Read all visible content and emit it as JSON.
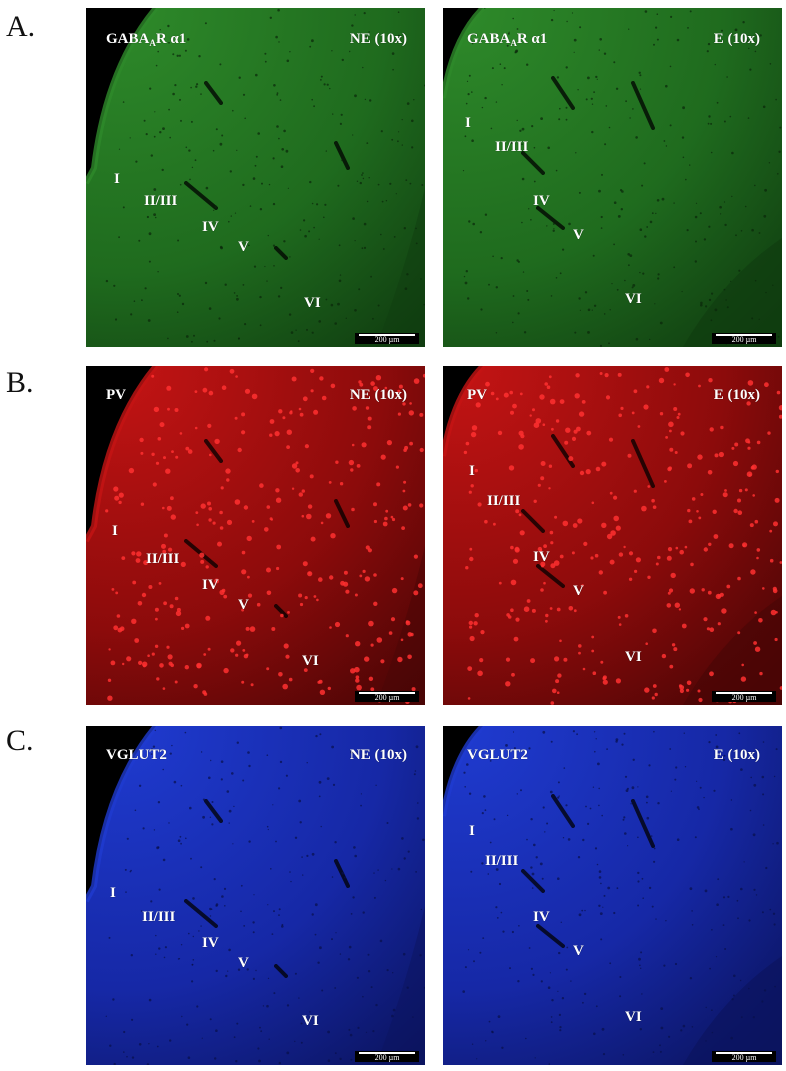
{
  "rows": [
    {
      "label": "A.",
      "marker": "GABA",
      "marker_sub": "A",
      "marker_suffix": "R α1",
      "colors": {
        "bright": "#2e8a2a",
        "mid": "#1f6b1e",
        "dark": "#103d10",
        "spot": "#0a260a"
      },
      "panels": [
        {
          "condition": "NE (10x)",
          "scale": "200 µm",
          "layers": {
            "I": "I",
            "II_III": "II/III",
            "IV": "IV",
            "V": "V",
            "VI": "VI"
          }
        },
        {
          "condition": "E (10x)",
          "scale": "200 µm",
          "layers": {
            "I": "I",
            "II_III": "II/III",
            "IV": "IV",
            "V": "V",
            "VI": "VI"
          }
        }
      ]
    },
    {
      "label": "B.",
      "marker": "PV",
      "marker_sub": "",
      "marker_suffix": "",
      "colors": {
        "bright": "#c41414",
        "mid": "#8c0b0b",
        "dark": "#4a0505",
        "spot": "#ff3030"
      },
      "panels": [
        {
          "condition": "NE (10x)",
          "scale": "200 µm",
          "layers": {
            "I": "I",
            "II_III": "II/III",
            "IV": "IV",
            "V": "V",
            "VI": "VI"
          }
        },
        {
          "condition": "E (10x)",
          "scale": "200 µm",
          "layers": {
            "I": "I",
            "II_III": "II/III",
            "IV": "IV",
            "V": "V",
            "VI": "VI"
          }
        }
      ]
    },
    {
      "label": "C.",
      "marker": "VGLUT2",
      "marker_sub": "",
      "marker_suffix": "",
      "colors": {
        "bright": "#1f3bd0",
        "mid": "#1628a6",
        "dark": "#0b1460",
        "spot": "#08104a"
      },
      "panels": [
        {
          "condition": "NE (10x)",
          "scale": "200 µm",
          "layers": {
            "I": "I",
            "II_III": "II/III",
            "IV": "IV",
            "V": "V",
            "VI": "VI"
          }
        },
        {
          "condition": "E (10x)",
          "scale": "200 µm",
          "layers": {
            "I": "I",
            "II_III": "II/III",
            "IV": "IV",
            "V": "V",
            "VI": "VI"
          }
        }
      ]
    }
  ]
}
